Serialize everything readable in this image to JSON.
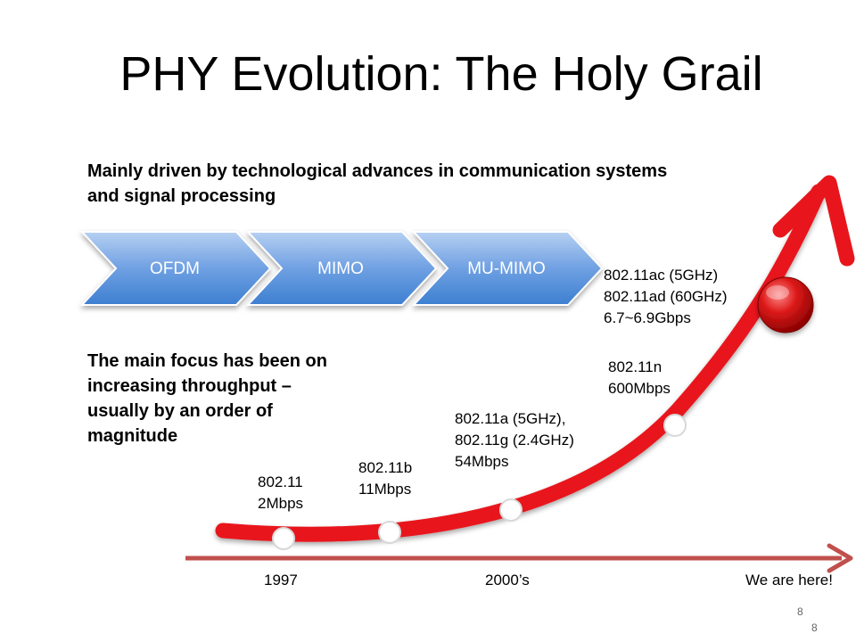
{
  "slide": {
    "title": "PHY Evolution: The Holy Grail",
    "intro_text_line1": "Mainly driven by technological advances in communication systems",
    "intro_text_line2": "and signal processing",
    "focus_text_lines": [
      "The main focus has been on",
      "increasing throughput –",
      "usually by an order of",
      "magnitude"
    ],
    "slide_number_top": "8",
    "slide_number_bottom": "8"
  },
  "process_steps": [
    "OFDM",
    "MIMO",
    "MU-MIMO"
  ],
  "milestones": [
    {
      "lines": [
        "802.11",
        "2Mbps"
      ]
    },
    {
      "lines": [
        "802.11b",
        "11Mbps"
      ]
    },
    {
      "lines": [
        "802.11a (5GHz),",
        "802.11g (2.4GHz)",
        "54Mbps"
      ]
    },
    {
      "lines": [
        "802.11n",
        "600Mbps"
      ]
    },
    {
      "lines": [
        "802.11ac (5GHz)",
        "802.11ad (60GHz)",
        "6.7~6.9Gbps"
      ]
    }
  ],
  "timeline": {
    "labels": [
      "1997",
      "2000’s",
      "We are here!"
    ]
  },
  "colors": {
    "curve": "#e8161c",
    "timeline_arrow": "#c0504d",
    "chevron_top": "#a9c6ee",
    "chevron_bottom": "#3d7fd1",
    "goal_ball": "#cc1111"
  }
}
